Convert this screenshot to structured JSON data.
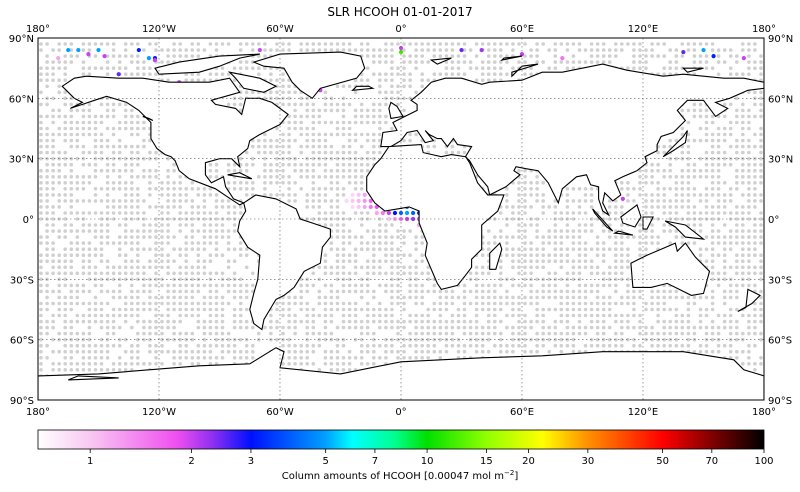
{
  "title": "SLR HCOOH 01-01-2017",
  "lon_ticks": [
    "180°",
    "120°W",
    "60°W",
    "0°",
    "60°E",
    "120°E",
    "180°"
  ],
  "lon_tick_values": [
    -180,
    -120,
    -60,
    0,
    60,
    120,
    180
  ],
  "lat_ticks": [
    "90°N",
    "60°N",
    "30°N",
    "0°",
    "30°S",
    "60°S",
    "90°S"
  ],
  "lat_tick_values": [
    90,
    60,
    30,
    0,
    -30,
    -60,
    -90
  ],
  "colorbar": {
    "label": "Column amounts of HCOOH [0.00047 mol m",
    "label_sup": "−2",
    "label_end": "]",
    "scale": "log",
    "range": [
      0.7,
      100
    ],
    "ticks": [
      "1",
      "2",
      "3",
      "5",
      "7",
      "10",
      "15",
      "20",
      "30",
      "50",
      "70",
      "100"
    ],
    "tick_values": [
      1,
      2,
      3,
      5,
      7,
      10,
      15,
      20,
      30,
      50,
      70,
      100
    ],
    "colormap": [
      [
        0.7,
        "#ffffff"
      ],
      [
        1,
        "#f8c8f2"
      ],
      [
        1.8,
        "#f050f0"
      ],
      [
        2.3,
        "#9030f0"
      ],
      [
        3,
        "#0010ff"
      ],
      [
        5,
        "#00a0ff"
      ],
      [
        6,
        "#00ffff"
      ],
      [
        8,
        "#00ff90"
      ],
      [
        10,
        "#00e000"
      ],
      [
        15,
        "#90ff00"
      ],
      [
        22,
        "#ffff00"
      ],
      [
        30,
        "#ff9000"
      ],
      [
        50,
        "#ff0000"
      ],
      [
        70,
        "#800000"
      ],
      [
        100,
        "#000000"
      ]
    ]
  },
  "chart_data": {
    "type": "map-scatter",
    "title": "SLR HCOOH 01-01-2017",
    "projection": "equirectangular",
    "xlim": [
      -180,
      180
    ],
    "ylim": [
      -90,
      90
    ],
    "grid": true,
    "no_data_color": "#d0d0d0",
    "cluster_rows": [
      {
        "lat": 18,
        "lon_start": -3,
        "lon_step": 3,
        "values": [
          1.5,
          2.2,
          2.5,
          2
        ]
      },
      {
        "lat": 15,
        "lon_start": -9,
        "lon_step": 3,
        "values": [
          1.2,
          1.5,
          2,
          2.5,
          3,
          2.2,
          1.8,
          1.5
        ]
      },
      {
        "lat": 12,
        "lon_start": -24,
        "lon_step": 3,
        "values": [
          0.9,
          1,
          1.2,
          1.3,
          1.5,
          1.8,
          2,
          2.2,
          2.5,
          2.2,
          2,
          1.8,
          1.6,
          1.8,
          2,
          2.2,
          2.5
        ]
      },
      {
        "lat": 9,
        "lon_start": -27,
        "lon_step": 3,
        "values": [
          0.9,
          1,
          1.1,
          1.3,
          1.6,
          1.8,
          2,
          2.2,
          2.4,
          2.5,
          2.2,
          2,
          2.3,
          2.5,
          2.8,
          3,
          2.5,
          2.2,
          2
        ]
      },
      {
        "lat": 6,
        "lon_start": -24,
        "lon_step": 3,
        "values": [
          0.9,
          1,
          1.2,
          1.5,
          1.8,
          2,
          2.2,
          2.5,
          3,
          4,
          5,
          4.5,
          3,
          2.5,
          2.2,
          2,
          1.8,
          1.5
        ]
      },
      {
        "lat": 3,
        "lon_start": -12,
        "lon_step": 3,
        "values": [
          1.2,
          1.5,
          2,
          3,
          4,
          5,
          4,
          3,
          2.5,
          2.2,
          2,
          1.8,
          1.5
        ]
      },
      {
        "lat": 0,
        "lon_start": -6,
        "lon_step": 3,
        "values": [
          1,
          1.2,
          1.5,
          2,
          2.2,
          2,
          1.8,
          1.5,
          1.2
        ]
      },
      {
        "lat": -3,
        "lon_start": 9,
        "lon_step": 3,
        "values": [
          1.2,
          1.5,
          1.5,
          1.2,
          1
        ]
      }
    ],
    "points": [
      [
        -165,
        84,
        5
      ],
      [
        -160,
        84,
        5
      ],
      [
        -150,
        84,
        5
      ],
      [
        -155,
        82,
        2
      ],
      [
        -130,
        84,
        3.2
      ],
      [
        -170,
        80,
        1.2
      ],
      [
        -147,
        81,
        2
      ],
      [
        -125,
        80,
        5
      ],
      [
        -122,
        80,
        3.2
      ],
      [
        -122,
        79,
        2
      ],
      [
        -140,
        72,
        2.5
      ],
      [
        -138,
        69,
        3.2
      ],
      [
        -132,
        69,
        4
      ],
      [
        -130,
        69,
        3.2
      ],
      [
        -105,
        62,
        2.5
      ],
      [
        -110,
        68,
        2
      ],
      [
        -98,
        67,
        2.5
      ],
      [
        -120,
        43,
        10
      ],
      [
        -30,
        72,
        3.2
      ],
      [
        -40,
        64,
        2
      ],
      [
        -70,
        84,
        2
      ],
      [
        0,
        85,
        2
      ],
      [
        0,
        83,
        12
      ],
      [
        30,
        84,
        2.5
      ],
      [
        40,
        84,
        2.2
      ],
      [
        60,
        82,
        2
      ],
      [
        80,
        80,
        1.5
      ],
      [
        150,
        84,
        5
      ],
      [
        140,
        83,
        2.5
      ],
      [
        155,
        81,
        3.2
      ],
      [
        170,
        80,
        2
      ],
      [
        100,
        70,
        2
      ],
      [
        75,
        45,
        2
      ],
      [
        120,
        40,
        1.8
      ],
      [
        85,
        28,
        2.5
      ],
      [
        110,
        10,
        2
      ],
      [
        118,
        -22,
        5
      ],
      [
        120,
        -25,
        2.5
      ],
      [
        130,
        -22,
        6
      ],
      [
        128,
        -27,
        2.2
      ],
      [
        -150,
        -82,
        2.2
      ],
      [
        -120,
        -85,
        2
      ],
      [
        -40,
        -82,
        2
      ],
      [
        -10,
        -80,
        3
      ],
      [
        20,
        -82,
        5
      ],
      [
        60,
        -82,
        2
      ],
      [
        120,
        -79,
        20
      ],
      [
        140,
        -82,
        2.5
      ],
      [
        150,
        -85,
        2.2
      ],
      [
        160,
        -82,
        3
      ],
      [
        -100,
        -85,
        4
      ]
    ]
  }
}
